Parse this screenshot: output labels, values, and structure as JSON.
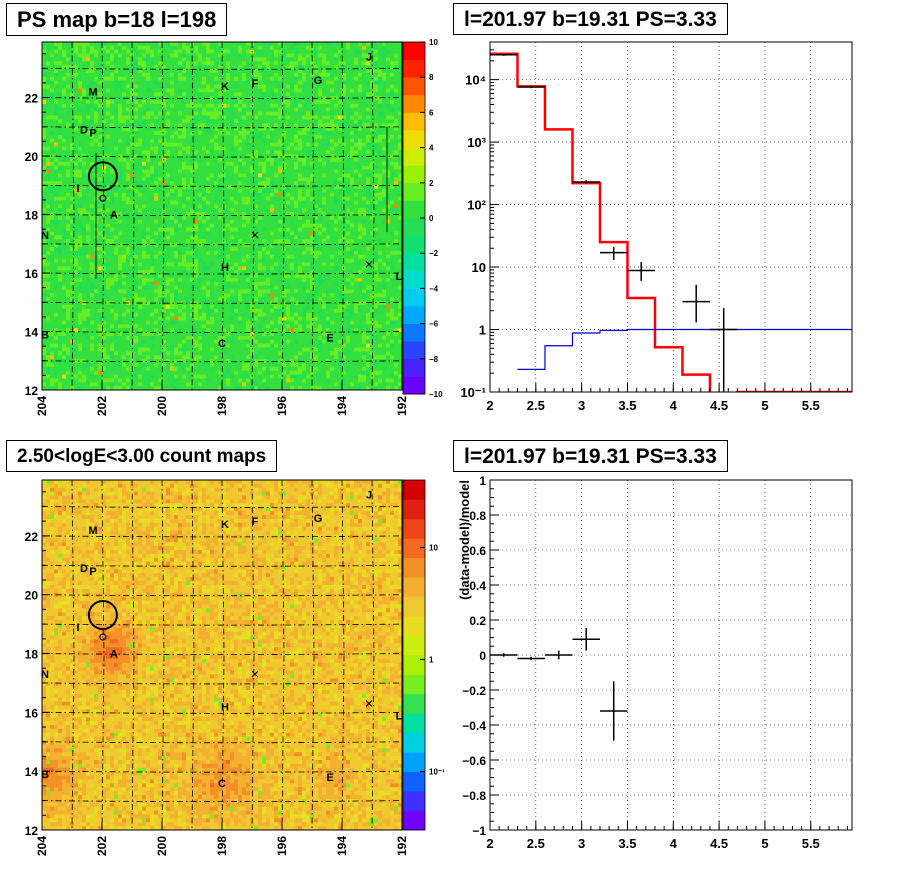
{
  "colors": {
    "red_curve": "#ff0000",
    "blue_curve": "#0000cc",
    "data_points": "#000000",
    "map_background_ps": "#22dd55",
    "map_background_counts": "#dccc22"
  },
  "chart_data": [
    {
      "type": "heatmap",
      "title": "PS map b=18 l=198",
      "xticks": [
        "204",
        "202",
        "200",
        "198",
        "196",
        "194",
        "192"
      ],
      "yticks": [
        "12",
        "14",
        "16",
        "18",
        "20",
        "22"
      ],
      "xlim": [
        204,
        192
      ],
      "ylim": [
        12,
        23.9
      ],
      "colorbar": {
        "scale": "linear",
        "range": [
          -10,
          10
        ],
        "ticks": [
          "10",
          "8",
          "6",
          "4",
          "2",
          "0",
          "−2",
          "−4",
          "−6",
          "−8",
          "−10"
        ]
      },
      "sources": [
        {
          "label": "M",
          "l": 202.3,
          "b": 22.2
        },
        {
          "label": "K",
          "l": 197.9,
          "b": 22.4
        },
        {
          "label": "F",
          "l": 196.9,
          "b": 22.5
        },
        {
          "label": "G",
          "l": 194.8,
          "b": 22.6
        },
        {
          "label": "J",
          "l": 193.1,
          "b": 23.4
        },
        {
          "label": "D",
          "l": 202.6,
          "b": 20.9
        },
        {
          "label": "P",
          "l": 202.3,
          "b": 20.8
        },
        {
          "label": "I",
          "l": 202.8,
          "b": 18.9
        },
        {
          "label": "A",
          "l": 201.6,
          "b": 18.0
        },
        {
          "label": "N",
          "l": 203.9,
          "b": 17.3
        },
        {
          "label": "H",
          "l": 197.9,
          "b": 16.2
        },
        {
          "label": "L",
          "l": 192.1,
          "b": 15.9
        },
        {
          "label": "B",
          "l": 203.9,
          "b": 13.9
        },
        {
          "label": "C",
          "l": 198.0,
          "b": 13.6
        },
        {
          "label": "E",
          "l": 194.4,
          "b": 13.8
        }
      ],
      "circle": {
        "l": 201.97,
        "b": 19.31
      },
      "crosses": [
        {
          "l": 196.9,
          "b": 17.3
        },
        {
          "l": 193.1,
          "b": 16.3
        }
      ]
    },
    {
      "type": "line",
      "title": "l=201.97 b=19.31 PS=3.33",
      "xticks": [
        "2",
        "2.5",
        "3",
        "3.5",
        "4",
        "4.5",
        "5",
        "5.5"
      ],
      "yticks": [
        "10⁴",
        "10³",
        "10²",
        "10",
        "1",
        "10⁻¹"
      ],
      "xlim": [
        2,
        5.95
      ],
      "ylim": [
        0.1,
        40000
      ],
      "yscale": "log",
      "grid": true,
      "series": [
        {
          "style": "step",
          "color": "red",
          "edges": [
            2.0,
            2.3,
            2.6,
            2.9,
            3.2,
            3.5,
            3.8,
            4.1,
            4.4,
            4.7,
            5.95
          ],
          "values": [
            26000,
            7800,
            1600,
            220,
            25,
            3.2,
            0.52,
            0.19,
            0.08,
            0.1
          ]
        },
        {
          "style": "step",
          "color": "blue",
          "edges": [
            2.3,
            2.6,
            2.9,
            3.2,
            3.5,
            3.8,
            5.95
          ],
          "values": [
            0.23,
            0.55,
            0.88,
            0.97,
            1.0,
            1.0
          ]
        },
        {
          "style": "errorbar",
          "color": "black",
          "points": [
            {
              "x": 2.15,
              "y": 25000,
              "xerr": 0.15,
              "ylo": 24000,
              "yhi": 26000
            },
            {
              "x": 2.45,
              "y": 7600,
              "xerr": 0.15,
              "ylo": 7300,
              "yhi": 7900
            },
            {
              "x": 3.05,
              "y": 230,
              "xerr": 0.15,
              "ylo": 215,
              "yhi": 245
            },
            {
              "x": 3.35,
              "y": 17,
              "xerr": 0.15,
              "ylo": 13,
              "yhi": 21
            },
            {
              "x": 3.65,
              "y": 8.8,
              "xerr": 0.15,
              "ylo": 6,
              "yhi": 12
            },
            {
              "x": 4.25,
              "y": 2.8,
              "xerr": 0.15,
              "ylo": 1.3,
              "yhi": 5.2
            },
            {
              "x": 4.55,
              "y": 1.0,
              "xerr": 0.15,
              "ylo": 0.1,
              "yhi": 2.2
            }
          ]
        }
      ]
    },
    {
      "type": "heatmap",
      "title": "2.50<logE<3.00 count maps",
      "xticks": [
        "204",
        "202",
        "200",
        "198",
        "196",
        "194",
        "192"
      ],
      "yticks": [
        "12",
        "14",
        "16",
        "18",
        "20",
        "22"
      ],
      "xlim": [
        204,
        192
      ],
      "ylim": [
        12,
        23.9
      ],
      "colorbar": {
        "scale": "log",
        "range": [
          0.03,
          40
        ],
        "ticks": [
          "10",
          "1",
          "10⁻¹"
        ]
      },
      "sources": [
        {
          "label": "M",
          "l": 202.3,
          "b": 22.2
        },
        {
          "label": "K",
          "l": 197.9,
          "b": 22.4
        },
        {
          "label": "F",
          "l": 196.9,
          "b": 22.5
        },
        {
          "label": "G",
          "l": 194.8,
          "b": 22.6
        },
        {
          "label": "J",
          "l": 193.1,
          "b": 23.4
        },
        {
          "label": "D",
          "l": 202.6,
          "b": 20.9
        },
        {
          "label": "P",
          "l": 202.3,
          "b": 20.8
        },
        {
          "label": "I",
          "l": 202.8,
          "b": 18.9
        },
        {
          "label": "A",
          "l": 201.6,
          "b": 18.0
        },
        {
          "label": "N",
          "l": 203.9,
          "b": 17.3
        },
        {
          "label": "H",
          "l": 197.9,
          "b": 16.2
        },
        {
          "label": "L",
          "l": 192.1,
          "b": 15.9
        },
        {
          "label": "B",
          "l": 203.9,
          "b": 13.9
        },
        {
          "label": "C",
          "l": 198.0,
          "b": 13.6
        },
        {
          "label": "E",
          "l": 194.4,
          "b": 13.8
        }
      ],
      "circle": {
        "l": 201.97,
        "b": 19.31
      },
      "crosses": [
        {
          "l": 196.9,
          "b": 17.3
        },
        {
          "l": 193.1,
          "b": 16.3
        }
      ]
    },
    {
      "type": "scatter",
      "title": "l=201.97 b=19.31 PS=3.33",
      "ylabel": "(data-model)/model",
      "xticks": [
        "2",
        "2.5",
        "3",
        "3.5",
        "4",
        "4.5",
        "5",
        "5.5"
      ],
      "yticks": [
        "1",
        "0.8",
        "0.6",
        "0.4",
        "0.2",
        "0",
        "−0.2",
        "−0.4",
        "−0.6",
        "−0.8",
        "−1"
      ],
      "xlim": [
        2,
        5.95
      ],
      "ylim": [
        -1,
        1
      ],
      "grid": true,
      "points": [
        {
          "x": 2.15,
          "y": 0.0,
          "xerr": 0.15,
          "yerr": 0.01
        },
        {
          "x": 2.45,
          "y": -0.02,
          "xerr": 0.15,
          "yerr": 0.01
        },
        {
          "x": 2.75,
          "y": 0.0,
          "xerr": 0.15,
          "yerr": 0.025
        },
        {
          "x": 3.05,
          "y": 0.09,
          "xerr": 0.15,
          "yerr": 0.065
        },
        {
          "x": 3.35,
          "y": -0.32,
          "xerr": 0.15,
          "yerr": 0.17
        }
      ]
    }
  ]
}
